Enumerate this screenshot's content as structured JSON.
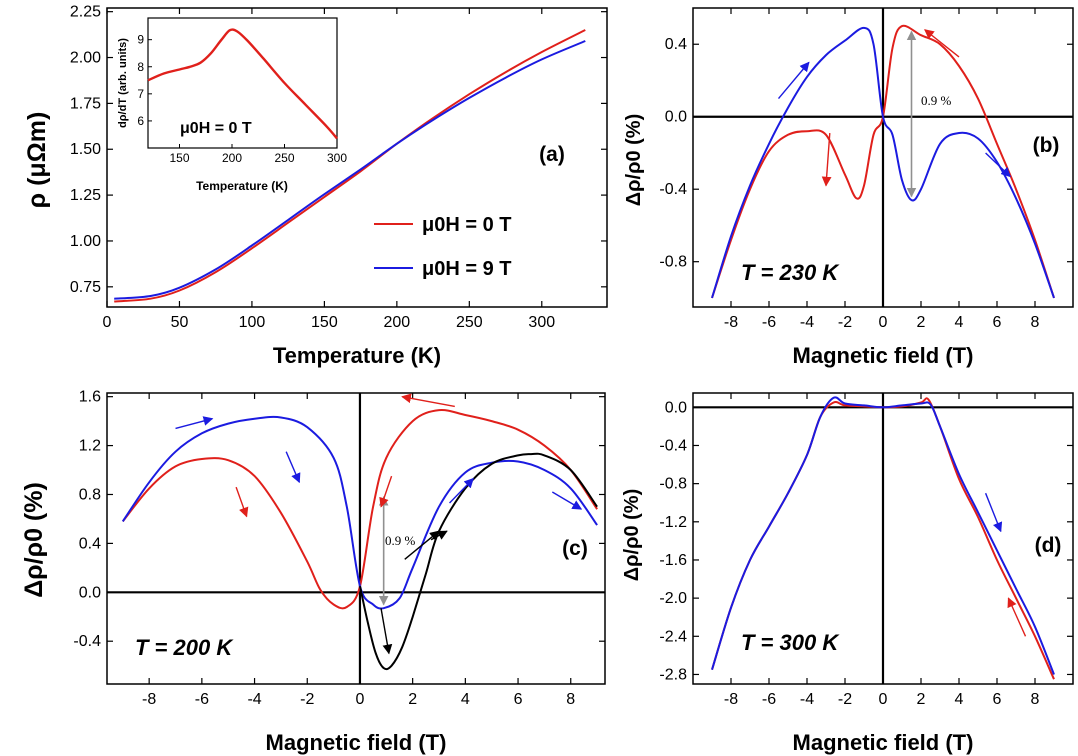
{
  "colors": {
    "red": "#e0201b",
    "blue": "#1b1be0",
    "black": "#000000",
    "gray": "#909090"
  },
  "chart_data": [
    {
      "id": "a",
      "type": "line",
      "panel_label": "(a)",
      "xlabel": "Temperature (K)",
      "ylabel": "ρ (μΩm)",
      "xlim": [
        0,
        345
      ],
      "ylim": [
        0.64,
        2.27
      ],
      "xticks": [
        "0",
        "50",
        "100",
        "150",
        "200",
        "250",
        "300"
      ],
      "yticks": [
        "0.75",
        "1.00",
        "1.25",
        "1.50",
        "1.75",
        "2.00",
        "2.25"
      ],
      "legend_position": "center-right",
      "series": [
        {
          "name": "μ0H = 0 T",
          "color": "red",
          "x": [
            5,
            30,
            50,
            75,
            100,
            125,
            150,
            175,
            200,
            225,
            250,
            275,
            300,
            330
          ],
          "y": [
            0.67,
            0.685,
            0.73,
            0.83,
            0.96,
            1.1,
            1.24,
            1.38,
            1.53,
            1.67,
            1.8,
            1.92,
            2.03,
            2.15
          ]
        },
        {
          "name": "μ0H = 9 T",
          "color": "blue",
          "x": [
            5,
            30,
            50,
            75,
            100,
            125,
            150,
            175,
            200,
            225,
            250,
            275,
            300,
            330
          ],
          "y": [
            0.685,
            0.7,
            0.745,
            0.845,
            0.975,
            1.115,
            1.255,
            1.39,
            1.53,
            1.66,
            1.78,
            1.89,
            1.99,
            2.09
          ]
        }
      ],
      "inset": {
        "type": "line",
        "xlabel": "Temperature (K)",
        "ylabel": "dρ/dT (arb. units)",
        "annotation": "μ0H = 0 T",
        "xlim": [
          120,
          300
        ],
        "ylim": [
          5.0,
          9.8
        ],
        "xticks": [
          "150",
          "200",
          "250",
          "300"
        ],
        "yticks": [
          "6",
          "7",
          "8",
          "9"
        ],
        "x": [
          120,
          135,
          150,
          160,
          170,
          180,
          190,
          198,
          205,
          215,
          230,
          250,
          270,
          290,
          300
        ],
        "y": [
          7.5,
          7.75,
          7.9,
          8.0,
          8.15,
          8.5,
          9.0,
          9.35,
          9.3,
          8.95,
          8.3,
          7.4,
          6.6,
          5.8,
          5.35
        ]
      }
    },
    {
      "id": "b",
      "type": "line",
      "panel_label": "(b)",
      "temperature_label": "T = 230 K",
      "xlabel": "Magnetic field (T)",
      "ylabel": "Δρ/ρ0 (%)",
      "xlim": [
        -10,
        10
      ],
      "ylim": [
        -1.05,
        0.6
      ],
      "xticks": [
        "-8",
        "-6",
        "-4",
        "-2",
        "0",
        "2",
        "4",
        "6",
        "8"
      ],
      "yticks": [
        "-0.8",
        "-0.4",
        "0.0",
        "0.4"
      ],
      "annotation": "0.9 %",
      "series": [
        {
          "color": "red",
          "x": [
            -9,
            -8,
            -7,
            -6,
            -5,
            -4,
            -3,
            -2,
            -1.4,
            -1,
            -0.5,
            0,
            0.5,
            1,
            2,
            3,
            4,
            5,
            6,
            7,
            8,
            9
          ],
          "y": [
            -1.0,
            -0.68,
            -0.4,
            -0.19,
            -0.1,
            -0.08,
            -0.1,
            -0.32,
            -0.45,
            -0.38,
            -0.1,
            0.0,
            0.38,
            0.5,
            0.45,
            0.4,
            0.28,
            0.1,
            -0.15,
            -0.4,
            -0.68,
            -1.0
          ]
        },
        {
          "color": "blue",
          "x": [
            -9,
            -8,
            -7,
            -6,
            -5,
            -4,
            -3,
            -2,
            -1,
            -0.5,
            0,
            0.5,
            1,
            1.5,
            2,
            3,
            4,
            5,
            6,
            7,
            8,
            9
          ],
          "y": [
            -1.0,
            -0.66,
            -0.38,
            -0.15,
            0.05,
            0.22,
            0.34,
            0.42,
            0.49,
            0.4,
            0.0,
            -0.1,
            -0.35,
            -0.46,
            -0.4,
            -0.15,
            -0.09,
            -0.12,
            -0.25,
            -0.45,
            -0.7,
            -1.0
          ]
        }
      ]
    },
    {
      "id": "c",
      "type": "line",
      "panel_label": "(c)",
      "temperature_label": "T = 200 K",
      "xlabel": "Magnetic field (T)",
      "ylabel": "Δρ/ρ0 (%)",
      "xlim": [
        -9.6,
        9.3
      ],
      "ylim": [
        -0.75,
        1.63
      ],
      "xticks": [
        "-8",
        "-6",
        "-4",
        "-2",
        "0",
        "2",
        "4",
        "6",
        "8"
      ],
      "yticks": [
        "-0.4",
        "0.0",
        "0.4",
        "0.8",
        "1.2",
        "1.6"
      ],
      "annotation": "0.9 %",
      "series": [
        {
          "color": "red",
          "x": [
            -9,
            -8,
            -7,
            -6,
            -5,
            -4,
            -3,
            -2,
            -1.5,
            -1,
            -0.5,
            0,
            0.5,
            1,
            2,
            3,
            4,
            5,
            6,
            7,
            8,
            9
          ],
          "y": [
            0.58,
            0.85,
            1.03,
            1.09,
            1.08,
            0.95,
            0.65,
            0.25,
            0.02,
            -0.1,
            -0.12,
            0.05,
            0.7,
            1.1,
            1.4,
            1.49,
            1.45,
            1.4,
            1.33,
            1.2,
            1.0,
            0.68
          ]
        },
        {
          "color": "blue",
          "x": [
            -9,
            -8,
            -7,
            -6,
            -5,
            -4,
            -3,
            -2,
            -1,
            -0.5,
            0,
            0.5,
            0.9,
            1.5,
            2,
            3,
            4,
            5,
            6,
            7,
            8,
            9
          ],
          "y": [
            0.58,
            0.9,
            1.15,
            1.3,
            1.38,
            1.42,
            1.43,
            1.35,
            1.1,
            0.7,
            0.05,
            -0.1,
            -0.13,
            -0.05,
            0.2,
            0.7,
            0.98,
            1.06,
            1.07,
            1.0,
            0.85,
            0.55
          ]
        },
        {
          "color": "black",
          "x": [
            0,
            0.3,
            0.6,
            0.9,
            1.2,
            1.6,
            2,
            2.5,
            3,
            4,
            5,
            6,
            6.5,
            7,
            8,
            9
          ],
          "y": [
            0.05,
            -0.25,
            -0.5,
            -0.62,
            -0.6,
            -0.45,
            -0.2,
            0.15,
            0.5,
            0.85,
            1.05,
            1.12,
            1.13,
            1.12,
            1.0,
            0.7
          ]
        }
      ]
    },
    {
      "id": "d",
      "type": "line",
      "panel_label": "(d)",
      "temperature_label": "T = 300 K",
      "xlabel": "Magnetic field (T)",
      "ylabel": "Δρ/ρ0 (%)",
      "xlim": [
        -10,
        10
      ],
      "ylim": [
        -2.9,
        0.15
      ],
      "xticks": [
        "-8",
        "-6",
        "-4",
        "-2",
        "0",
        "2",
        "4",
        "6",
        "8"
      ],
      "yticks": [
        "0.0",
        "-0.4",
        "-0.8",
        "-1.2",
        "-1.6",
        "-2.0",
        "-2.4",
        "-2.8"
      ],
      "series": [
        {
          "color": "red",
          "x": [
            -9,
            -8,
            -7,
            -6,
            -5,
            -4,
            -3.3,
            -2.6,
            -2,
            -1,
            0,
            1,
            2,
            2.4,
            3,
            4,
            5,
            6,
            7,
            8,
            9
          ],
          "y": [
            -2.75,
            -2.1,
            -1.6,
            -1.25,
            -0.9,
            -0.5,
            -0.1,
            0.05,
            0.02,
            0.01,
            0.0,
            0.01,
            0.05,
            0.08,
            -0.2,
            -0.75,
            -1.15,
            -1.6,
            -2.0,
            -2.4,
            -2.85
          ]
        },
        {
          "color": "blue",
          "x": [
            -9,
            -8,
            -7,
            -6,
            -5,
            -4,
            -3.3,
            -2.6,
            -2,
            -1,
            0,
            1,
            2,
            2.5,
            3,
            4,
            5,
            6,
            7,
            8,
            9
          ],
          "y": [
            -2.75,
            -2.1,
            -1.6,
            -1.25,
            -0.9,
            -0.5,
            -0.1,
            0.1,
            0.04,
            0.02,
            0.0,
            0.02,
            0.04,
            0.03,
            -0.2,
            -0.7,
            -1.1,
            -1.5,
            -1.9,
            -2.3,
            -2.8
          ]
        }
      ]
    }
  ]
}
